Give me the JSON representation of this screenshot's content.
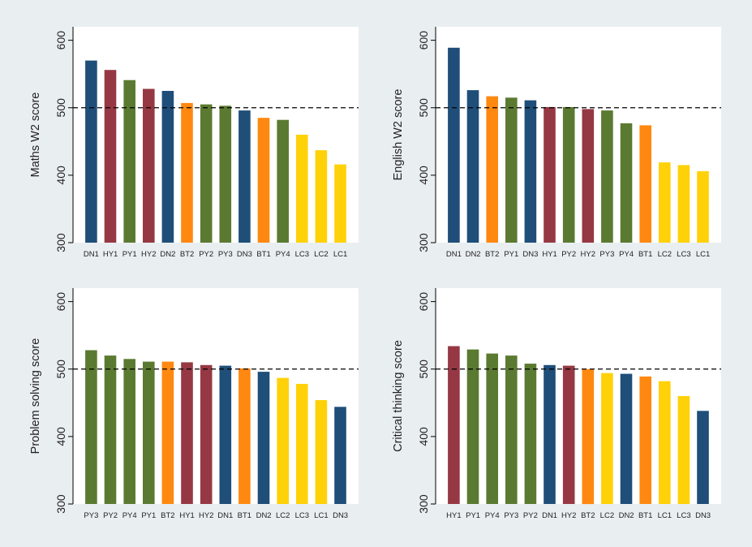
{
  "colors": {
    "background": "#e9eef1",
    "plot_area": "#ffffff",
    "reference_line": "#000000",
    "groups": {
      "DN": "#1f4e79",
      "HY": "#963843",
      "PY": "#5b7a31",
      "BT": "#ff8811",
      "LC": "#ffd109"
    }
  },
  "chart_data": [
    {
      "type": "bar",
      "ylabel": "Maths W2 score",
      "ylim": [
        300,
        620
      ],
      "yticks": [
        300,
        400,
        500,
        600
      ],
      "reference_line": 500,
      "grid": false,
      "categories": [
        "DN1",
        "HY1",
        "PY1",
        "HY2",
        "DN2",
        "BT2",
        "PY2",
        "PY3",
        "DN3",
        "BT1",
        "PY4",
        "LC3",
        "LC2",
        "LC1"
      ],
      "values": [
        570,
        556,
        541,
        528,
        525,
        507,
        505,
        503,
        496,
        485,
        482,
        460,
        437,
        416
      ]
    },
    {
      "type": "bar",
      "ylabel": "English W2 score",
      "ylim": [
        300,
        620
      ],
      "yticks": [
        300,
        400,
        500,
        600
      ],
      "reference_line": 500,
      "grid": false,
      "categories": [
        "DN1",
        "DN2",
        "BT2",
        "PY1",
        "DN3",
        "HY1",
        "PY2",
        "HY2",
        "PY3",
        "PY4",
        "BT1",
        "LC2",
        "LC3",
        "LC1"
      ],
      "values": [
        589,
        526,
        517,
        515,
        511,
        501,
        501,
        498,
        496,
        477,
        474,
        419,
        415,
        406
      ]
    },
    {
      "type": "bar",
      "ylabel": "Problem solving score",
      "ylim": [
        300,
        620
      ],
      "yticks": [
        300,
        400,
        500,
        600
      ],
      "reference_line": 500,
      "grid": false,
      "categories": [
        "PY3",
        "PY2",
        "PY4",
        "PY1",
        "BT2",
        "HY1",
        "HY2",
        "DN1",
        "BT1",
        "DN2",
        "LC2",
        "LC3",
        "LC1",
        "DN3"
      ],
      "values": [
        528,
        520,
        515,
        511,
        511,
        510,
        506,
        505,
        501,
        496,
        487,
        478,
        454,
        444
      ]
    },
    {
      "type": "bar",
      "ylabel": "Critical thinking score",
      "ylim": [
        300,
        620
      ],
      "yticks": [
        300,
        400,
        500,
        600
      ],
      "reference_line": 500,
      "grid": false,
      "categories": [
        "HY1",
        "PY1",
        "PY4",
        "PY3",
        "PY2",
        "DN1",
        "HY2",
        "BT2",
        "LC2",
        "DN2",
        "BT1",
        "LC1",
        "LC3",
        "DN3"
      ],
      "values": [
        534,
        529,
        523,
        520,
        508,
        506,
        505,
        500,
        494,
        493,
        489,
        482,
        460,
        438
      ]
    }
  ]
}
